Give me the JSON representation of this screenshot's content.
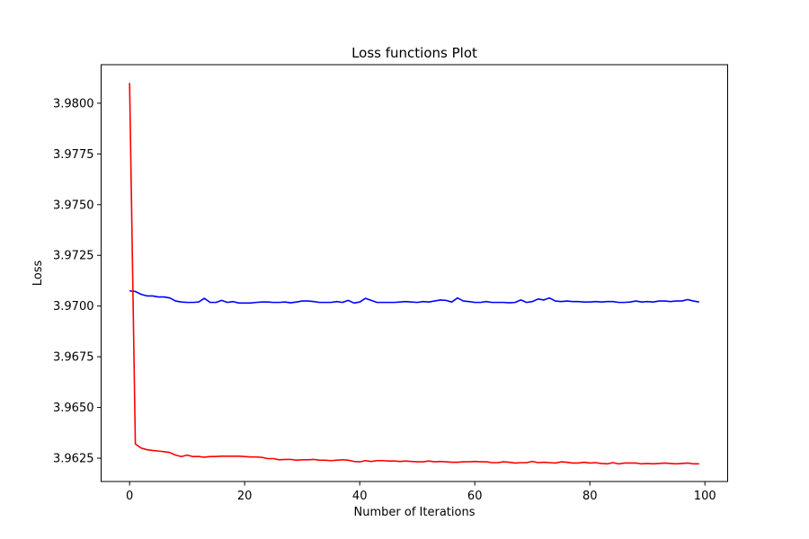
{
  "chart_data": {
    "type": "line",
    "title": "Loss functions Plot",
    "xlabel": "Number of Iterations",
    "ylabel": "Loss",
    "xlim": [
      -4.95,
      103.95
    ],
    "ylim": [
      3.96135,
      3.9819
    ],
    "xticks": [
      0,
      20,
      40,
      60,
      80,
      100
    ],
    "yticks": [
      3.9625,
      3.965,
      3.9675,
      3.97,
      3.9725,
      3.975,
      3.9775,
      3.98
    ],
    "ytick_labels": [
      "3.9625",
      "3.9650",
      "3.9675",
      "3.9700",
      "3.9725",
      "3.9750",
      "3.9775",
      "3.9800"
    ],
    "grid": false,
    "series": [
      {
        "color": "#0000ff",
        "x": [
          0,
          1,
          2,
          3,
          4,
          5,
          6,
          7,
          8,
          9,
          10,
          11,
          12,
          13,
          14,
          15,
          16,
          17,
          18,
          19,
          20,
          21,
          22,
          23,
          24,
          25,
          26,
          27,
          28,
          29,
          30,
          31,
          32,
          33,
          34,
          35,
          36,
          37,
          38,
          39,
          40,
          41,
          42,
          43,
          44,
          45,
          46,
          47,
          48,
          49,
          50,
          51,
          52,
          53,
          54,
          55,
          56,
          57,
          58,
          59,
          60,
          61,
          62,
          63,
          64,
          65,
          66,
          67,
          68,
          69,
          70,
          71,
          72,
          73,
          74,
          75,
          76,
          77,
          78,
          79,
          80,
          81,
          82,
          83,
          84,
          85,
          86,
          87,
          88,
          89,
          90,
          91,
          92,
          93,
          94,
          95,
          96,
          97,
          98,
          99
        ],
        "values": [
          3.97075,
          3.97072,
          3.97058,
          3.9705,
          3.9705,
          3.97045,
          3.97045,
          3.9704,
          3.97025,
          3.9702,
          3.97018,
          3.97018,
          3.9702,
          3.97038,
          3.97018,
          3.97018,
          3.97028,
          3.97018,
          3.97022,
          3.97015,
          3.97015,
          3.97015,
          3.97018,
          3.9702,
          3.9702,
          3.97018,
          3.97018,
          3.9702,
          3.97016,
          3.9702,
          3.97025,
          3.97025,
          3.97022,
          3.97018,
          3.97018,
          3.97018,
          3.97022,
          3.97018,
          3.97028,
          3.97015,
          3.9702,
          3.97038,
          3.97028,
          3.97018,
          3.97018,
          3.97018,
          3.97018,
          3.9702,
          3.97022,
          3.9702,
          3.97018,
          3.97022,
          3.9702,
          3.97025,
          3.9703,
          3.97028,
          3.9702,
          3.9704,
          3.97025,
          3.97022,
          3.97018,
          3.97018,
          3.97022,
          3.97018,
          3.97018,
          3.97018,
          3.97016,
          3.97018,
          3.9703,
          3.97018,
          3.97022,
          3.97035,
          3.9703,
          3.9704,
          3.97025,
          3.97022,
          3.97025,
          3.97022,
          3.97022,
          3.9702,
          3.9702,
          3.97022,
          3.9702,
          3.97022,
          3.97022,
          3.97018,
          3.97018,
          3.9702,
          3.97025,
          3.9702,
          3.97022,
          3.9702,
          3.97025,
          3.97025,
          3.97022,
          3.97025,
          3.97025,
          3.97032,
          3.97025,
          3.9702
        ]
      },
      {
        "color": "#ff0000",
        "x": [
          0,
          1,
          2,
          3,
          4,
          5,
          6,
          7,
          8,
          9,
          10,
          11,
          12,
          13,
          14,
          15,
          16,
          17,
          18,
          19,
          20,
          21,
          22,
          23,
          24,
          25,
          26,
          27,
          28,
          29,
          30,
          31,
          32,
          33,
          34,
          35,
          36,
          37,
          38,
          39,
          40,
          41,
          42,
          43,
          44,
          45,
          46,
          47,
          48,
          49,
          50,
          51,
          52,
          53,
          54,
          55,
          56,
          57,
          58,
          59,
          60,
          61,
          62,
          63,
          64,
          65,
          66,
          67,
          68,
          69,
          70,
          71,
          72,
          73,
          74,
          75,
          76,
          77,
          78,
          79,
          80,
          81,
          82,
          83,
          84,
          85,
          86,
          87,
          88,
          89,
          90,
          91,
          92,
          93,
          94,
          95,
          96,
          97,
          98,
          99
        ],
        "values": [
          3.981,
          3.9632,
          3.963,
          3.96292,
          3.96288,
          3.96285,
          3.96282,
          3.96278,
          3.96265,
          3.96258,
          3.96265,
          3.96258,
          3.96258,
          3.96255,
          3.96258,
          3.96258,
          3.9626,
          3.9626,
          3.9626,
          3.9626,
          3.96258,
          3.96256,
          3.96256,
          3.96254,
          3.96248,
          3.96248,
          3.96242,
          3.96244,
          3.96244,
          3.9624,
          3.96242,
          3.96242,
          3.96244,
          3.9624,
          3.9624,
          3.96238,
          3.9624,
          3.96242,
          3.9624,
          3.96234,
          3.96232,
          3.96238,
          3.96234,
          3.96238,
          3.96238,
          3.96236,
          3.96236,
          3.96234,
          3.96236,
          3.96234,
          3.96232,
          3.96232,
          3.96236,
          3.96232,
          3.96234,
          3.96232,
          3.9623,
          3.9623,
          3.96232,
          3.96232,
          3.96234,
          3.96232,
          3.96232,
          3.96228,
          3.96228,
          3.96232,
          3.9623,
          3.96226,
          3.96228,
          3.96228,
          3.96234,
          3.96228,
          3.9623,
          3.96228,
          3.96226,
          3.96232,
          3.9623,
          3.96226,
          3.96226,
          3.9623,
          3.96226,
          3.96228,
          3.96224,
          3.96222,
          3.96228,
          3.96222,
          3.96226,
          3.96226,
          3.96226,
          3.96222,
          3.96224,
          3.96222,
          3.96224,
          3.96226,
          3.96224,
          3.96222,
          3.96224,
          3.96226,
          3.96222,
          3.96222
        ]
      }
    ]
  }
}
